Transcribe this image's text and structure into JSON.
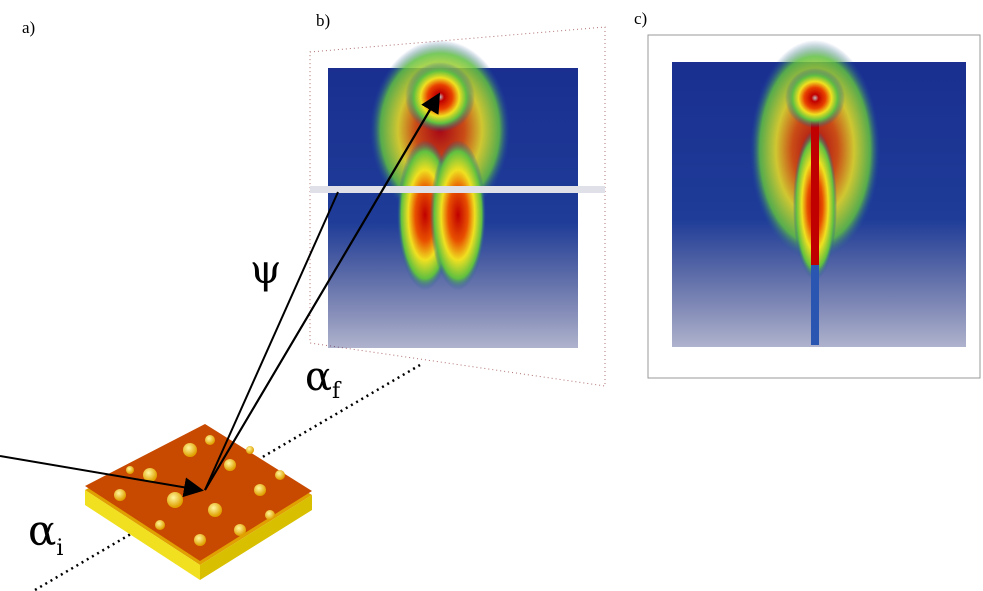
{
  "panels": {
    "a": "a)",
    "b": "b)",
    "c": "c)"
  },
  "symbols": {
    "psi": "ψ",
    "alpha_f": {
      "base": "α",
      "sub": "f"
    },
    "alpha_i": {
      "base": "α",
      "sub": "i"
    }
  }
}
